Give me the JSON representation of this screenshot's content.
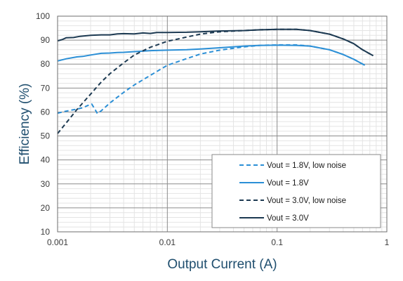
{
  "chart_data": {
    "type": "line",
    "xlabel": "Output Current (A)",
    "ylabel": "Efficiency (%)",
    "x_scale": "log",
    "xlim": [
      0.001,
      1
    ],
    "ylim": [
      10,
      100
    ],
    "x_tick_labels": [
      "0.001",
      "0.01",
      "0.1",
      "1"
    ],
    "x_tick_values": [
      0.001,
      0.01,
      0.1,
      1
    ],
    "y_ticks": [
      10,
      20,
      30,
      40,
      50,
      60,
      70,
      80,
      90,
      100
    ],
    "grid": true,
    "legend_position": "bottom-right",
    "series": [
      {
        "name": "Vout = 1.8V, low noise",
        "color": "#2b8fd6",
        "dash": "dashed",
        "points": [
          [
            0.001,
            59.5
          ],
          [
            0.00115,
            60.2
          ],
          [
            0.0013,
            60.7
          ],
          [
            0.0015,
            61.2
          ],
          [
            0.0017,
            61.8
          ],
          [
            0.0019,
            62.8
          ],
          [
            0.00205,
            63.3
          ],
          [
            0.0022,
            61
          ],
          [
            0.0023,
            59.4
          ],
          [
            0.0025,
            60.5
          ],
          [
            0.003,
            63.8
          ],
          [
            0.004,
            68.2
          ],
          [
            0.005,
            71.3
          ],
          [
            0.007,
            75.3
          ],
          [
            0.01,
            79.5
          ],
          [
            0.015,
            82.3
          ],
          [
            0.02,
            84.2
          ],
          [
            0.03,
            85.8
          ],
          [
            0.05,
            87.2
          ],
          [
            0.07,
            87.8
          ],
          [
            0.1,
            88.0
          ],
          [
            0.15,
            88.0
          ],
          [
            0.2,
            87.5
          ],
          [
            0.3,
            86.0
          ],
          [
            0.4,
            84.0
          ],
          [
            0.5,
            82.0
          ],
          [
            0.63,
            79.5
          ]
        ]
      },
      {
        "name": "Vout = 1.8V",
        "color": "#2b8fd6",
        "dash": "solid",
        "points": [
          [
            0.001,
            81.3
          ],
          [
            0.0012,
            82.2
          ],
          [
            0.0015,
            83.0
          ],
          [
            0.0017,
            83.2
          ],
          [
            0.002,
            83.8
          ],
          [
            0.0025,
            84.5
          ],
          [
            0.003,
            84.6
          ],
          [
            0.0035,
            84.8
          ],
          [
            0.004,
            84.9
          ],
          [
            0.005,
            85.2
          ],
          [
            0.007,
            85.6
          ],
          [
            0.01,
            85.8
          ],
          [
            0.015,
            86.0
          ],
          [
            0.02,
            86.3
          ],
          [
            0.03,
            86.8
          ],
          [
            0.05,
            87.5
          ],
          [
            0.07,
            87.8
          ],
          [
            0.1,
            87.9
          ],
          [
            0.15,
            87.8
          ],
          [
            0.2,
            87.5
          ],
          [
            0.3,
            86.0
          ],
          [
            0.4,
            84.0
          ],
          [
            0.5,
            82.0
          ],
          [
            0.63,
            79.5
          ]
        ]
      },
      {
        "name": "Vout = 3.0V, low noise",
        "color": "#1d3a52",
        "dash": "dashed",
        "points": [
          [
            0.001,
            51.0
          ],
          [
            0.0012,
            55.5
          ],
          [
            0.0015,
            61.0
          ],
          [
            0.002,
            67.5
          ],
          [
            0.0025,
            72.5
          ],
          [
            0.003,
            76.0
          ],
          [
            0.004,
            80.5
          ],
          [
            0.005,
            83.8
          ],
          [
            0.007,
            87.0
          ],
          [
            0.01,
            89.5
          ],
          [
            0.015,
            91.3
          ],
          [
            0.02,
            92.5
          ],
          [
            0.03,
            93.5
          ],
          [
            0.05,
            94.0
          ],
          [
            0.07,
            94.3
          ],
          [
            0.1,
            94.5
          ],
          [
            0.15,
            94.5
          ],
          [
            0.2,
            94.0
          ],
          [
            0.3,
            92.5
          ],
          [
            0.4,
            90.5
          ],
          [
            0.5,
            88.5
          ],
          [
            0.6,
            86.0
          ],
          [
            0.75,
            83.5
          ]
        ]
      },
      {
        "name": "Vout = 3.0V",
        "color": "#1d3a52",
        "dash": "solid",
        "points": [
          [
            0.001,
            89.7
          ],
          [
            0.0011,
            90.2
          ],
          [
            0.0012,
            91.0
          ],
          [
            0.0014,
            91.1
          ],
          [
            0.0016,
            91.6
          ],
          [
            0.002,
            92.0
          ],
          [
            0.0025,
            92.2
          ],
          [
            0.003,
            92.2
          ],
          [
            0.0035,
            92.6
          ],
          [
            0.004,
            92.7
          ],
          [
            0.005,
            92.6
          ],
          [
            0.006,
            93.0
          ],
          [
            0.007,
            92.8
          ],
          [
            0.008,
            93.2
          ],
          [
            0.01,
            93.2
          ],
          [
            0.015,
            93.3
          ],
          [
            0.02,
            93.5
          ],
          [
            0.03,
            93.8
          ],
          [
            0.05,
            94.0
          ],
          [
            0.07,
            94.3
          ],
          [
            0.1,
            94.5
          ],
          [
            0.15,
            94.5
          ],
          [
            0.2,
            94.0
          ],
          [
            0.3,
            92.5
          ],
          [
            0.4,
            90.5
          ],
          [
            0.5,
            88.5
          ],
          [
            0.6,
            86.0
          ],
          [
            0.75,
            83.5
          ]
        ]
      }
    ]
  }
}
